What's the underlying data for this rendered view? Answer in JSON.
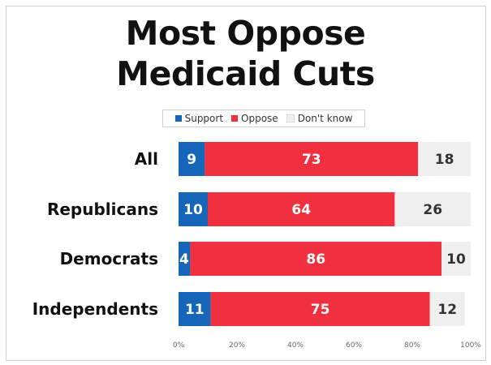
{
  "title_lines": [
    "Most Oppose",
    "Medicaid Cuts"
  ],
  "colors": {
    "support": "#1565b8",
    "oppose": "#f0303e",
    "dont_know": "#efefef",
    "text_light": "#ffffff",
    "text_dark": "#333333"
  },
  "chart_data": {
    "type": "bar",
    "orientation": "horizontal",
    "stacked": true,
    "title": "Most Oppose Medicaid Cuts",
    "categories": [
      "All",
      "Republicans",
      "Democrats",
      "Independents"
    ],
    "series": [
      {
        "name": "Support",
        "values": [
          9,
          10,
          4,
          11
        ]
      },
      {
        "name": "Oppose",
        "values": [
          73,
          64,
          86,
          75
        ]
      },
      {
        "name": "Don't know",
        "values": [
          18,
          26,
          10,
          12
        ]
      }
    ],
    "xlim": [
      0,
      100
    ],
    "x_ticks": [
      "0%",
      "20%",
      "40%",
      "60%",
      "80%",
      "100%"
    ],
    "legend_position": "top",
    "grid": false
  }
}
